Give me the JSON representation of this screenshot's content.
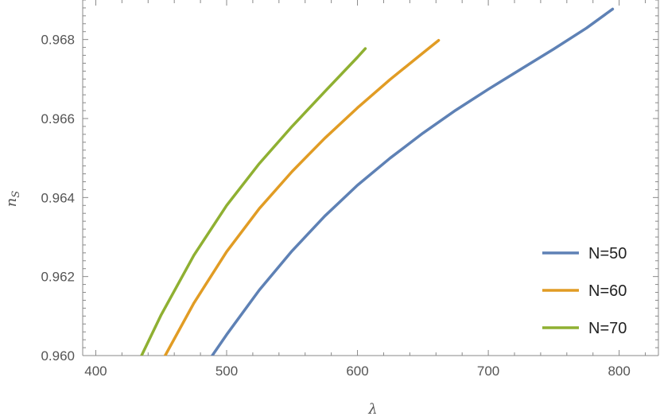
{
  "chart_data": {
    "type": "line",
    "title": "",
    "xlabel": "λ",
    "ylabel_main": "n",
    "ylabel_sub": "S",
    "xlim": [
      390,
      830
    ],
    "ylim": [
      0.96,
      0.969
    ],
    "xticks": [
      400,
      500,
      600,
      700,
      800
    ],
    "xtick_labels": [
      "400",
      "500",
      "600",
      "700",
      "800"
    ],
    "yticks": [
      0.96,
      0.962,
      0.964,
      0.966,
      0.968
    ],
    "ytick_labels": [
      "0.960",
      "0.962",
      "0.964",
      "0.966",
      "0.968"
    ],
    "grid": false,
    "legend_position": "bottom-right",
    "series": [
      {
        "name": "N=50",
        "color": "#5e81b5",
        "x": [
          489,
          500,
          525,
          550,
          575,
          600,
          625,
          650,
          675,
          700,
          725,
          750,
          775,
          795
        ],
        "y": [
          0.96,
          0.96053,
          0.96166,
          0.96265,
          0.96353,
          0.96431,
          0.965,
          0.96563,
          0.96621,
          0.96674,
          0.96725,
          0.96776,
          0.96829,
          0.96877
        ]
      },
      {
        "name": "N=60",
        "color": "#e19c24",
        "x": [
          453,
          475,
          500,
          525,
          550,
          575,
          600,
          625,
          650,
          662
        ],
        "y": [
          0.96,
          0.96133,
          0.96263,
          0.96372,
          0.96466,
          0.9655,
          0.96627,
          0.96699,
          0.96766,
          0.96798
        ]
      },
      {
        "name": "N=70",
        "color": "#8fb032",
        "x": [
          435,
          450,
          475,
          500,
          525,
          550,
          575,
          600,
          606
        ],
        "y": [
          0.96,
          0.96103,
          0.96254,
          0.9638,
          0.96486,
          0.9658,
          0.96668,
          0.96755,
          0.96777
        ]
      }
    ]
  }
}
